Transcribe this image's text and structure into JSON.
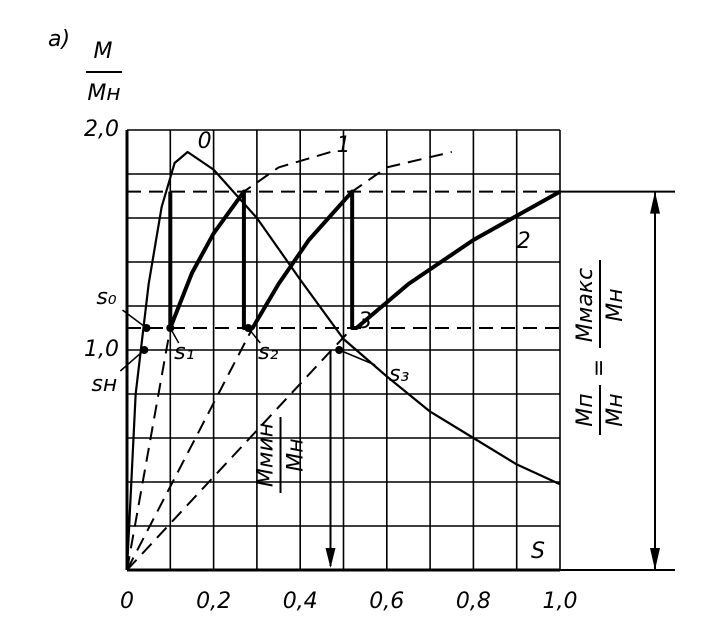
{
  "chart_data": {
    "type": "line",
    "panel_label": "а)",
    "y_label": {
      "num": "M",
      "den": "Mн"
    },
    "x_label": "S",
    "xlim": [
      0,
      1.0
    ],
    "ylim": [
      0,
      2.0
    ],
    "xticks": [
      {
        "value": 0,
        "label": "0"
      },
      {
        "value": 0.2,
        "label": "0,2"
      },
      {
        "value": 0.4,
        "label": "0,4"
      },
      {
        "value": 0.6,
        "label": "0,6"
      },
      {
        "value": 0.8,
        "label": "0,8"
      },
      {
        "value": 1.0,
        "label": "1,0"
      }
    ],
    "yticks": [
      {
        "value": 1.0,
        "label": "1,0"
      },
      {
        "value": 2.0,
        "label": "2,0"
      }
    ],
    "xgrid": [
      0,
      0.1,
      0.2,
      0.3,
      0.4,
      0.5,
      0.6,
      0.7,
      0.8,
      0.9,
      1.0
    ],
    "ygrid": [
      0.2,
      0.4,
      0.6,
      0.8,
      1.0,
      1.2,
      1.4,
      1.6,
      1.8,
      2.0
    ],
    "series": [
      {
        "name": "0",
        "style": "solid",
        "width": 2.2,
        "x": [
          0,
          0.02,
          0.05,
          0.08,
          0.11,
          0.14,
          0.2,
          0.3,
          0.4,
          0.5,
          0.6,
          0.7,
          0.8,
          0.9,
          1.0
        ],
        "values": [
          0,
          0.8,
          1.3,
          1.65,
          1.85,
          1.9,
          1.82,
          1.6,
          1.32,
          1.05,
          0.88,
          0.72,
          0.6,
          0.48,
          0.39
        ]
      },
      {
        "style": "solid",
        "width": 4,
        "x": [
          0.1,
          0.1,
          0.15,
          0.2,
          0.27,
          0.27,
          0.28,
          0.29,
          0.35,
          0.42,
          0.52,
          0.52,
          0.53,
          0.65,
          0.8,
          1.0
        ],
        "values": [
          1.72,
          1.1,
          1.35,
          1.53,
          1.72,
          1.1,
          1.1,
          1.1,
          1.3,
          1.5,
          1.72,
          1.1,
          1.1,
          1.3,
          1.5,
          1.72
        ]
      },
      {
        "name": "1",
        "style": "dashed",
        "width": 2,
        "x": [
          0,
          0.1,
          0.15,
          0.2,
          0.27,
          0.35,
          0.47
        ],
        "values": [
          0,
          1.1,
          1.35,
          1.53,
          1.72,
          1.83,
          1.9
        ]
      },
      {
        "name": "2",
        "style": "dashed",
        "width": 2,
        "x": [
          0,
          0.29,
          0.35,
          0.42,
          0.52,
          0.6,
          0.75
        ],
        "values": [
          0,
          1.1,
          1.3,
          1.5,
          1.72,
          1.83,
          1.9
        ]
      },
      {
        "name": "3",
        "style": "dashed",
        "width": 2,
        "x": [
          0,
          0.52
        ],
        "values": [
          0,
          1.1
        ]
      }
    ],
    "hlines": [
      1.72,
      1.1
    ],
    "points": [
      {
        "label": "s₀",
        "x": 0.045,
        "y": 1.1
      },
      {
        "label": "sн",
        "x": 0.04,
        "y": 1.0
      },
      {
        "label": "s₁",
        "x": 0.1,
        "y": 1.1
      },
      {
        "label": "s₂",
        "x": 0.28,
        "y": 1.1
      },
      {
        "label": "s₃",
        "x": 0.49,
        "y": 1.0
      }
    ],
    "min_label": {
      "num": "Mмин",
      "den": "Mн",
      "x": 0.47
    },
    "max_label": {
      "lhs_num": "Mп",
      "lhs_den": "Mн",
      "eq": "=",
      "rhs_num": "Mмакс",
      "rhs_den": "Mн"
    }
  }
}
